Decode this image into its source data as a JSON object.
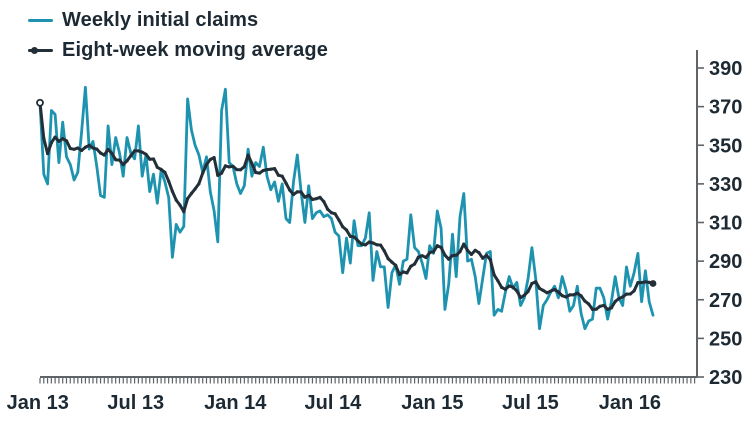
{
  "legend": {
    "items": [
      {
        "label": "Weekly initial claims",
        "color": "#1e93b0"
      },
      {
        "label": "Eight-week moving average",
        "color": "#232f38"
      }
    ]
  },
  "chart_data": {
    "type": "line",
    "title": "",
    "xlabel": "",
    "ylabel": "",
    "x_unit": "week",
    "x_range_labels": [
      "Jan 13",
      "Jul 13",
      "Jan 14",
      "Jul 14",
      "Jan 15",
      "Jul 15",
      "Jan 16"
    ],
    "x_ticks": [
      {
        "label": "Jan 13",
        "week": -0.6
      },
      {
        "label": "Jul 13",
        "week": 25.3
      },
      {
        "label": "Jan 14",
        "week": 51.6
      },
      {
        "label": "Jul 14",
        "week": 77.4
      },
      {
        "label": "Jan 15",
        "week": 103.7
      },
      {
        "label": "Jul 15",
        "week": 129.6
      },
      {
        "label": "Jan 16",
        "week": 155.9
      }
    ],
    "y_ticks": [
      230,
      250,
      270,
      290,
      310,
      330,
      350,
      370,
      390
    ],
    "ylim": [
      230,
      400
    ],
    "grid": false,
    "legend_position": "top-left",
    "axis_color": "#5f6468",
    "minor_x_ticks": "weekly",
    "series": [
      {
        "name": "Weekly initial claims",
        "color": "#1e93b0",
        "values": [
          372,
          335,
          330,
          368,
          366,
          341,
          362,
          344,
          340,
          332,
          336,
          357,
          380,
          348,
          352,
          339,
          324,
          323,
          360,
          340,
          354,
          346,
          334,
          354,
          346,
          343,
          360,
          334,
          345,
          326,
          335,
          320,
          337,
          331,
          323,
          292,
          309,
          305,
          308,
          374,
          358,
          350,
          345,
          336,
          344,
          326,
          316,
          300,
          368,
          379,
          341,
          339,
          330,
          325,
          329,
          348,
          334,
          341,
          339,
          349,
          334,
          327,
          331,
          321,
          330,
          312,
          310,
          331,
          345,
          326,
          310,
          329,
          312,
          315,
          316,
          313,
          314,
          312,
          305,
          303,
          284,
          302,
          289,
          311,
          298,
          298,
          302,
          315,
          280,
          295,
          287,
          287,
          266,
          284,
          288,
          278,
          290,
          291,
          314,
          297,
          295,
          289,
          281,
          298,
          294,
          316,
          307,
          265,
          278,
          304,
          282,
          313,
          325,
          290,
          291,
          282,
          268,
          281,
          294,
          295,
          262,
          265,
          264,
          274,
          282,
          276,
          279,
          267,
          271,
          281,
          297,
          281,
          255,
          267,
          270,
          274,
          277,
          271,
          282,
          275,
          264,
          267,
          277,
          263,
          255,
          259,
          260,
          276,
          276,
          271,
          260,
          269,
          282,
          271,
          267,
          287,
          277,
          284,
          294,
          269,
          285,
          269,
          262
        ]
      },
      {
        "name": "Eight-week moving average",
        "color": "#232f38",
        "values": [
          372,
          353.5,
          345.7,
          351.3,
          354.2,
          352,
          353.4,
          352.3,
          348.3,
          347.9,
          348.6,
          347.3,
          349,
          349.9,
          348.6,
          348,
          346,
          344.9,
          347.9,
          345.8,
          342.5,
          342.3,
          340,
          341.9,
          344.6,
          347.1,
          347.1,
          346.4,
          345.3,
          342.8,
          342.9,
          338.6,
          337.5,
          336,
          331.4,
          326.1,
          321.6,
          319,
          315.6,
          322.4,
          325,
          327.4,
          330.1,
          335.6,
          340,
          342.6,
          343.6,
          334.4,
          335.6,
          339.3,
          338.8,
          339.1,
          337.4,
          337.3,
          338.9,
          344.9,
          340.6,
          335.9,
          335.6,
          336.9,
          337.4,
          337.6,
          337.9,
          334.5,
          334,
          330.4,
          326.8,
          324.5,
          325.9,
          325.8,
          323.1,
          324.1,
          321.9,
          322.3,
          323,
          320.8,
          316.9,
          315.1,
          314.5,
          311.3,
          307.8,
          306.1,
          302.8,
          302.5,
          300.5,
          298.8,
          298.4,
          299.9,
          299.4,
          298.5,
          298.3,
          295.3,
          291.3,
          289.5,
          287.8,
          283.1,
          284.4,
          283.9,
          287.3,
          288.5,
          292.1,
          292.8,
          291.9,
          294.4,
          294.9,
          298,
          297.1,
          293.1,
          291,
          292.9,
          293,
          294.9,
          298.8,
          295.5,
          293.5,
          295.6,
          294.4,
          291.5,
          293,
          290.8,
          282.9,
          279.8,
          276.4,
          275.4,
          277.1,
          276.5,
          274.6,
          271.1,
          272.3,
          274.3,
          278.4,
          279.3,
          275.9,
          274.8,
          273.6,
          274.5,
          275.3,
          274,
          272.1,
          271.4,
          272.5,
          272.5,
          273.4,
          272,
          269.3,
          267.8,
          265,
          265.1,
          266.6,
          267.1,
          265,
          265.8,
          269.1,
          270.6,
          271.5,
          272.9,
          273,
          274.6,
          278.9,
          278.9,
          279.3,
          279,
          278.4
        ]
      }
    ]
  }
}
